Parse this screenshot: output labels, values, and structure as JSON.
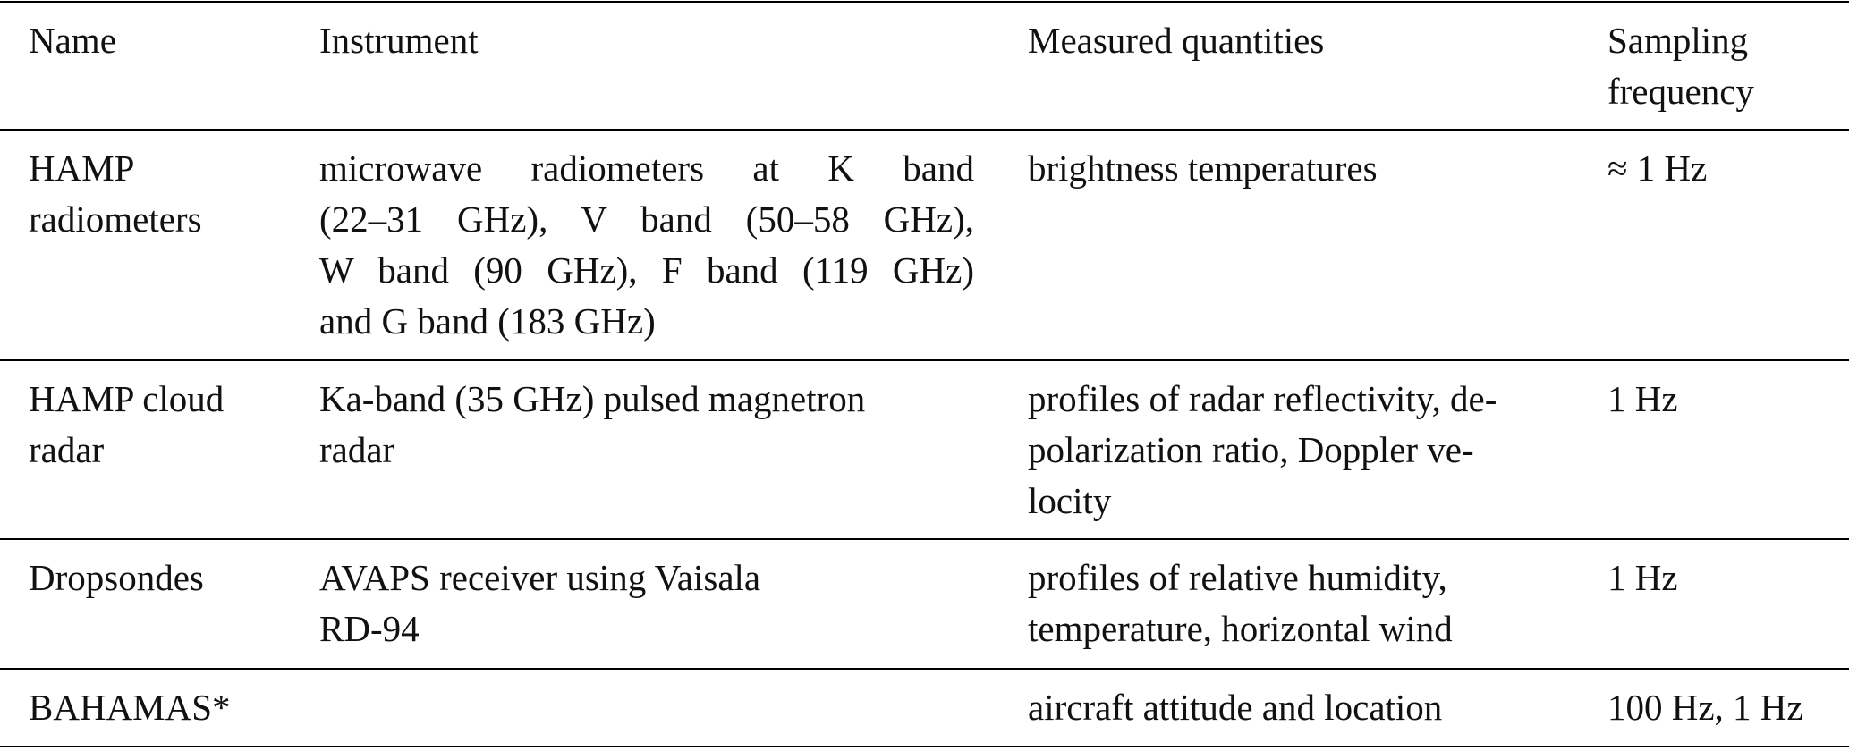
{
  "table": {
    "header": [
      [
        "Name"
      ],
      [
        "Instrument"
      ],
      [
        "Measured quantities"
      ],
      [
        "Sampling",
        "frequency"
      ]
    ],
    "rows": [
      [
        [
          "HAMP",
          "radiometers"
        ],
        [
          "microwave radiometers at K band",
          "(22–31 GHz), V band (50–58 GHz),",
          "W band (90 GHz), F band (119 GHz)",
          "and G band (183 GHz)"
        ],
        [
          "brightness temperatures"
        ],
        [
          "≈ 1 Hz"
        ]
      ],
      [
        [
          "HAMP cloud",
          "radar"
        ],
        [
          "Ka-band (35 GHz) pulsed magnetron",
          "radar"
        ],
        [
          "profiles of radar reflectivity, de-",
          "polarization ratio, Doppler ve-",
          "locity"
        ],
        [
          "1 Hz"
        ]
      ],
      [
        [
          "Dropsondes"
        ],
        [
          "AVAPS receiver using Vaisala",
          "RD-94"
        ],
        [
          "profiles of relative humidity,",
          "temperature, horizontal wind"
        ],
        [
          "1 Hz"
        ]
      ],
      [
        [
          "BAHAMAS*"
        ],
        [],
        [
          "aircraft attitude and location"
        ],
        [
          "100 Hz, 1 Hz"
        ]
      ]
    ]
  }
}
